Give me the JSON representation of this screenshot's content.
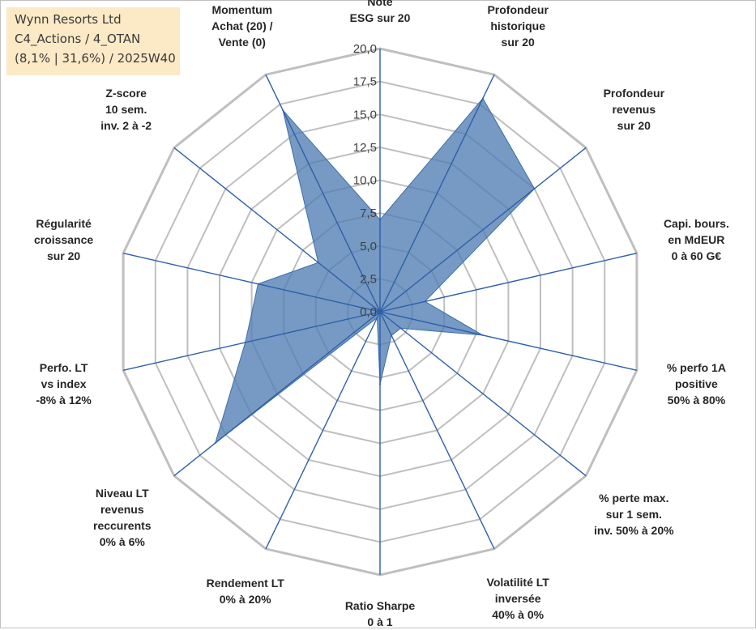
{
  "info_box": {
    "line1": "Wynn Resorts Ltd",
    "line2": "C4_Actions / 4_OTAN",
    "line3": "(8,1% | 31,6%) / 2025W40"
  },
  "chart_data": {
    "type": "radar",
    "title": "",
    "rlim": [
      0,
      20
    ],
    "ticks": [
      "0,0",
      "2,5",
      "5,0",
      "7,5",
      "10,0",
      "12,5",
      "15,0",
      "17,5",
      "20,0"
    ],
    "axes": [
      "Note\nESG sur 20",
      "Profondeur\nhistorique\nsur 20",
      "Profondeur\nrevenus\nsur 20",
      "Capi. bours.\nen MdEUR\n0 à 60 G€",
      "% perfo 1A\npositive\n50% à 80%",
      "% perte max.\nsur 1 sem.\ninv. 50% à 20%",
      "Volatilité LT\ninversée\n40% à 0%",
      "Ratio Sharpe\n0 à 1",
      "Rendement LT\n0% à 20%",
      "Niveau LT\nrevenus\nreccurents\n0% à 6%",
      "Perfo. LT\nvs index\n-8% à 12%",
      "Régularité\ncroissance\nsur 20",
      "Z-score\n10 sem.\ninv. 2 à -2",
      "Momentum\nAchat (20) /\nVente (0)"
    ],
    "values": [
      7.0,
      18.0,
      15.0,
      3.5,
      8.0,
      2.0,
      2.0,
      5.5,
      0.5,
      16.0,
      10.5,
      9.5,
      6.0,
      17.0
    ],
    "series_color": "#4f7db3",
    "grid_color": "#bfbfbf",
    "axis_color": "#2f5fa8",
    "grid": true,
    "legend": "none"
  }
}
